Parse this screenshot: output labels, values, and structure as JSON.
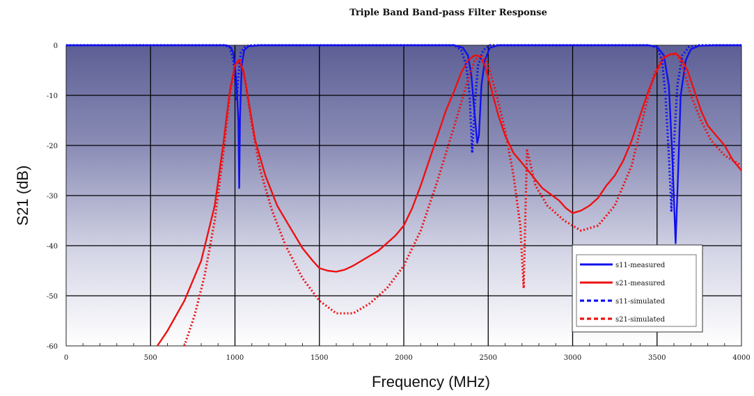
{
  "chart_data": {
    "type": "line",
    "title": "Triple Band Band-pass Filter Response",
    "xlabel": "Frequency (MHz)",
    "ylabel": "S21 (dB)",
    "xlim": [
      0,
      4000
    ],
    "ylim": [
      -60,
      0
    ],
    "x_ticks": [
      "0",
      "500",
      "1000",
      "1500",
      "2000",
      "2500",
      "3000",
      "3500",
      "4000"
    ],
    "y_ticks": [
      "0",
      "-10",
      "-20",
      "-30",
      "-40",
      "-50",
      "-60"
    ],
    "grid": true,
    "legend_position": "lower-right",
    "series": [
      {
        "name": "s11-measured",
        "color": "#1010ee",
        "style": "solid",
        "points": [
          [
            0,
            0
          ],
          [
            950,
            0
          ],
          [
            975,
            -0.4
          ],
          [
            990,
            -1.5
          ],
          [
            1000,
            -4
          ],
          [
            1010,
            -8
          ],
          [
            1020,
            -15
          ],
          [
            1025,
            -28.5
          ],
          [
            1030,
            -14
          ],
          [
            1040,
            -4
          ],
          [
            1055,
            -1
          ],
          [
            1080,
            -0.2
          ],
          [
            1150,
            0
          ],
          [
            2300,
            0
          ],
          [
            2350,
            -0.5
          ],
          [
            2380,
            -2
          ],
          [
            2400,
            -6
          ],
          [
            2420,
            -14
          ],
          [
            2435,
            -19.5
          ],
          [
            2445,
            -18
          ],
          [
            2460,
            -8
          ],
          [
            2480,
            -3
          ],
          [
            2510,
            -0.5
          ],
          [
            2560,
            0
          ],
          [
            3450,
            0
          ],
          [
            3500,
            -0.3
          ],
          [
            3540,
            -2
          ],
          [
            3570,
            -8
          ],
          [
            3590,
            -22
          ],
          [
            3610,
            -39.5
          ],
          [
            3625,
            -25
          ],
          [
            3640,
            -10
          ],
          [
            3670,
            -3
          ],
          [
            3700,
            -0.8
          ],
          [
            3750,
            -0.1
          ],
          [
            3850,
            0
          ],
          [
            4000,
            0
          ]
        ]
      },
      {
        "name": "s21-measured",
        "color": "#ee1010",
        "style": "solid",
        "points": [
          [
            540,
            -60
          ],
          [
            600,
            -57
          ],
          [
            700,
            -51
          ],
          [
            800,
            -43
          ],
          [
            880,
            -32
          ],
          [
            930,
            -20
          ],
          [
            970,
            -9
          ],
          [
            1000,
            -4
          ],
          [
            1020,
            -3
          ],
          [
            1050,
            -5
          ],
          [
            1080,
            -11
          ],
          [
            1120,
            -19
          ],
          [
            1180,
            -26
          ],
          [
            1250,
            -32
          ],
          [
            1320,
            -36
          ],
          [
            1400,
            -40.5
          ],
          [
            1460,
            -43
          ],
          [
            1500,
            -44.5
          ],
          [
            1550,
            -45
          ],
          [
            1600,
            -45.2
          ],
          [
            1650,
            -44.8
          ],
          [
            1700,
            -44
          ],
          [
            1750,
            -43
          ],
          [
            1800,
            -42
          ],
          [
            1850,
            -41
          ],
          [
            1900,
            -39.5
          ],
          [
            1950,
            -38
          ],
          [
            2000,
            -36
          ],
          [
            2050,
            -32.5
          ],
          [
            2100,
            -28
          ],
          [
            2150,
            -23
          ],
          [
            2200,
            -18
          ],
          [
            2250,
            -13
          ],
          [
            2300,
            -9
          ],
          [
            2340,
            -5.5
          ],
          [
            2380,
            -3
          ],
          [
            2420,
            -2
          ],
          [
            2450,
            -2.2
          ],
          [
            2480,
            -4
          ],
          [
            2520,
            -9
          ],
          [
            2560,
            -14
          ],
          [
            2600,
            -18
          ],
          [
            2650,
            -21.5
          ],
          [
            2700,
            -23.5
          ],
          [
            2760,
            -26
          ],
          [
            2820,
            -28.5
          ],
          [
            2880,
            -30
          ],
          [
            2920,
            -31
          ],
          [
            2960,
            -32.5
          ],
          [
            3000,
            -33.5
          ],
          [
            3050,
            -33
          ],
          [
            3100,
            -32
          ],
          [
            3150,
            -30.5
          ],
          [
            3200,
            -28
          ],
          [
            3250,
            -26
          ],
          [
            3300,
            -23
          ],
          [
            3350,
            -19
          ],
          [
            3400,
            -14
          ],
          [
            3450,
            -9
          ],
          [
            3500,
            -5
          ],
          [
            3540,
            -2.5
          ],
          [
            3580,
            -1.8
          ],
          [
            3610,
            -1.6
          ],
          [
            3640,
            -2.5
          ],
          [
            3680,
            -5
          ],
          [
            3720,
            -9
          ],
          [
            3760,
            -13
          ],
          [
            3800,
            -16
          ],
          [
            3850,
            -18
          ],
          [
            3900,
            -20
          ],
          [
            3950,
            -23
          ],
          [
            4000,
            -25
          ]
        ]
      },
      {
        "name": "s11-simulated",
        "color": "#1010ee",
        "style": "dotted",
        "points": [
          [
            0,
            0
          ],
          [
            940,
            0
          ],
          [
            970,
            -0.5
          ],
          [
            990,
            -3
          ],
          [
            1000,
            -6
          ],
          [
            1010,
            -11
          ],
          [
            1020,
            -6
          ],
          [
            1035,
            -1.5
          ],
          [
            1060,
            -0.2
          ],
          [
            1100,
            0
          ],
          [
            2300,
            0
          ],
          [
            2340,
            -1
          ],
          [
            2370,
            -4
          ],
          [
            2390,
            -10
          ],
          [
            2405,
            -21.5
          ],
          [
            2420,
            -12
          ],
          [
            2440,
            -4
          ],
          [
            2470,
            -1
          ],
          [
            2510,
            0
          ],
          [
            3450,
            0
          ],
          [
            3500,
            -0.5
          ],
          [
            3530,
            -3
          ],
          [
            3550,
            -10
          ],
          [
            3570,
            -22
          ],
          [
            3585,
            -33
          ],
          [
            3600,
            -20
          ],
          [
            3620,
            -8
          ],
          [
            3650,
            -2
          ],
          [
            3690,
            -0.3
          ],
          [
            3750,
            0
          ],
          [
            4000,
            0
          ]
        ]
      },
      {
        "name": "s21-simulated",
        "color": "#ee1010",
        "style": "dotted",
        "points": [
          [
            700,
            -60
          ],
          [
            760,
            -54
          ],
          [
            820,
            -46
          ],
          [
            880,
            -35
          ],
          [
            930,
            -22
          ],
          [
            970,
            -10
          ],
          [
            1000,
            -4
          ],
          [
            1030,
            -3
          ],
          [
            1060,
            -7
          ],
          [
            1100,
            -16
          ],
          [
            1150,
            -25
          ],
          [
            1220,
            -33
          ],
          [
            1300,
            -40
          ],
          [
            1400,
            -46.5
          ],
          [
            1500,
            -51
          ],
          [
            1600,
            -53.5
          ],
          [
            1700,
            -53.5
          ],
          [
            1800,
            -51.5
          ],
          [
            1900,
            -48.5
          ],
          [
            2000,
            -44
          ],
          [
            2100,
            -37
          ],
          [
            2200,
            -27
          ],
          [
            2300,
            -16
          ],
          [
            2370,
            -8
          ],
          [
            2420,
            -3
          ],
          [
            2460,
            -2
          ],
          [
            2500,
            -4
          ],
          [
            2550,
            -10
          ],
          [
            2600,
            -17
          ],
          [
            2650,
            -26
          ],
          [
            2690,
            -36
          ],
          [
            2710,
            -48.5
          ],
          [
            2720,
            -34
          ],
          [
            2730,
            -21
          ],
          [
            2745,
            -23
          ],
          [
            2780,
            -28
          ],
          [
            2850,
            -32
          ],
          [
            2950,
            -35
          ],
          [
            3050,
            -37
          ],
          [
            3150,
            -36
          ],
          [
            3250,
            -32
          ],
          [
            3350,
            -24
          ],
          [
            3420,
            -14
          ],
          [
            3480,
            -6
          ],
          [
            3530,
            -2.5
          ],
          [
            3580,
            -1.8
          ],
          [
            3620,
            -2
          ],
          [
            3660,
            -5
          ],
          [
            3700,
            -10
          ],
          [
            3760,
            -15
          ],
          [
            3820,
            -19
          ],
          [
            3900,
            -22
          ],
          [
            4000,
            -24
          ]
        ]
      }
    ]
  }
}
